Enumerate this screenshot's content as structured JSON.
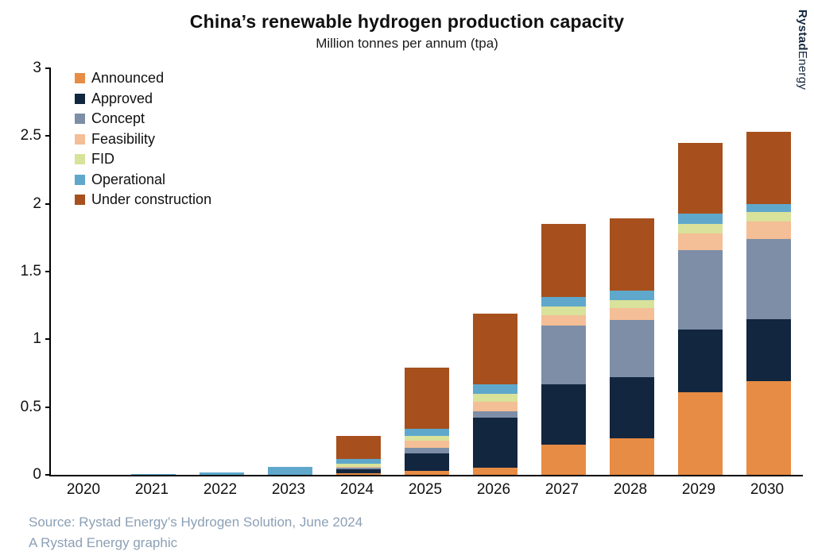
{
  "chart_data": {
    "type": "bar",
    "stacked": true,
    "title": "China’s renewable hydrogen production capacity",
    "subtitle": "Million tonnes per annum (tpa)",
    "categories": [
      "2020",
      "2021",
      "2022",
      "2023",
      "2024",
      "2025",
      "2026",
      "2027",
      "2028",
      "2029",
      "2030"
    ],
    "ylim": [
      0,
      3
    ],
    "yticks": [
      0,
      0.5,
      1,
      1.5,
      2,
      2.5,
      3
    ],
    "ytick_labels": [
      "0",
      "0.5",
      "1",
      "1.5",
      "2",
      "2.5",
      "3"
    ],
    "grid": false,
    "legend_position": "top-left-inside",
    "series": [
      {
        "name": "Announced",
        "color": "#E78C44",
        "values": [
          0,
          0,
          0,
          0,
          0.01,
          0.03,
          0.05,
          0.22,
          0.27,
          0.61,
          0.69
        ]
      },
      {
        "name": "Approved",
        "color": "#12263F",
        "values": [
          0,
          0,
          0,
          0,
          0.03,
          0.13,
          0.37,
          0.45,
          0.45,
          0.46,
          0.46
        ]
      },
      {
        "name": "Concept",
        "color": "#7D8EA6",
        "values": [
          0,
          0,
          0,
          0,
          0.01,
          0.04,
          0.05,
          0.43,
          0.42,
          0.59,
          0.59
        ]
      },
      {
        "name": "Feasibility",
        "color": "#F4BE96",
        "values": [
          0,
          0,
          0,
          0,
          0.01,
          0.05,
          0.07,
          0.08,
          0.09,
          0.12,
          0.13
        ]
      },
      {
        "name": "FID",
        "color": "#D9E29A",
        "values": [
          0,
          0,
          0,
          0,
          0.02,
          0.04,
          0.06,
          0.06,
          0.06,
          0.07,
          0.07
        ]
      },
      {
        "name": "Operational",
        "color": "#5FA8CC",
        "values": [
          0,
          0.005,
          0.015,
          0.06,
          0.04,
          0.05,
          0.07,
          0.07,
          0.07,
          0.08,
          0.06
        ]
      },
      {
        "name": "Under construction",
        "color": "#A7501D",
        "values": [
          0,
          0,
          0,
          0,
          0.17,
          0.45,
          0.52,
          0.54,
          0.53,
          0.52,
          0.53
        ]
      }
    ]
  },
  "branding": {
    "logo_bold": "Rystad",
    "logo_light": "Energy"
  },
  "footer": {
    "source": "Source: Rystad Energy’s Hydrogen Solution, June 2024",
    "credit": "A Rystad Energy graphic"
  }
}
